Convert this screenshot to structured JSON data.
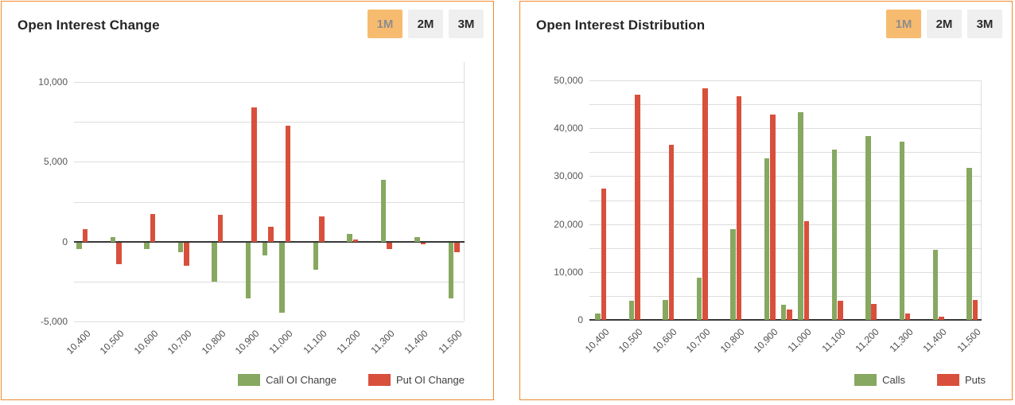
{
  "colors": {
    "call": "#87A860",
    "put": "#D8503C",
    "panel_border": "#EF8A30",
    "button_active_bg": "#F7BB70",
    "button_active_text": "#8D8D8D",
    "button_bg": "#EFEFEF",
    "button_text": "#2B2B2B",
    "gridline": "#DDDDDD",
    "zero_line": "#373737"
  },
  "panels": [
    {
      "title": "Open Interest Change",
      "buttons": [
        {
          "label": "1M",
          "active": true
        },
        {
          "label": "2M",
          "active": false
        },
        {
          "label": "3M",
          "active": false
        }
      ]
    },
    {
      "title": "Open Interest Distribution",
      "buttons": [
        {
          "label": "1M",
          "active": true
        },
        {
          "label": "2M",
          "active": false
        },
        {
          "label": "3M",
          "active": false
        }
      ]
    }
  ],
  "chart_data": [
    {
      "type": "bar",
      "title": "Open Interest Change",
      "x_axis": {
        "type": "linear",
        "categories": [
          10400,
          10500,
          10600,
          10700,
          10800,
          10900,
          10950,
          11000,
          11100,
          11200,
          11300,
          11400,
          11500
        ],
        "tick_labels": [
          {
            "value": 10400,
            "label": "10,400"
          },
          {
            "value": 10500,
            "label": "10,500"
          },
          {
            "value": 10600,
            "label": "10,600"
          },
          {
            "value": 10700,
            "label": "10,700"
          },
          {
            "value": 10800,
            "label": "10,800"
          },
          {
            "value": 10900,
            "label": "10,900"
          },
          {
            "value": 11000,
            "label": "11,000"
          },
          {
            "value": 11100,
            "label": "11,100"
          },
          {
            "value": 11200,
            "label": "11,200"
          },
          {
            "value": 11300,
            "label": "11,300"
          },
          {
            "value": 11400,
            "label": "11,400"
          },
          {
            "value": 11500,
            "label": "11,500"
          }
        ]
      },
      "series": [
        {
          "name": "Call OI Change",
          "color_key": "call",
          "values": [
            -400,
            300,
            -400,
            -600,
            -2450,
            -3500,
            -800,
            -4400,
            -1700,
            500,
            3900,
            300,
            -3500
          ]
        },
        {
          "name": "Put OI Change",
          "color_key": "put",
          "values": [
            800,
            -1350,
            1750,
            -1450,
            1700,
            8400,
            950,
            7250,
            1600,
            150,
            -400,
            -100,
            -600
          ]
        }
      ],
      "y_axis": {
        "lim": [
          -5000,
          11250
        ],
        "minor_step": 2500,
        "tick_labels": [
          {
            "value": 10000,
            "label": "10,000"
          },
          {
            "value": 5000,
            "label": "5,000"
          },
          {
            "value": 0,
            "label": "0"
          },
          {
            "value": -5000,
            "label": "-5,000"
          }
        ]
      },
      "legend": [
        "Call OI Change",
        "Put OI Change"
      ],
      "legend_position": "bottom-right",
      "grid": true
    },
    {
      "type": "bar",
      "title": "Open Interest Distribution",
      "x_axis": {
        "type": "linear",
        "categories": [
          10400,
          10500,
          10600,
          10700,
          10800,
          10900,
          10950,
          11000,
          11100,
          11200,
          11300,
          11400,
          11500
        ],
        "tick_labels": [
          {
            "value": 10400,
            "label": "10,400"
          },
          {
            "value": 10500,
            "label": "10,500"
          },
          {
            "value": 10600,
            "label": "10,600"
          },
          {
            "value": 10700,
            "label": "10,700"
          },
          {
            "value": 10800,
            "label": "10,800"
          },
          {
            "value": 10900,
            "label": "10,900"
          },
          {
            "value": 11000,
            "label": "11,000"
          },
          {
            "value": 11100,
            "label": "11,100"
          },
          {
            "value": 11200,
            "label": "11,200"
          },
          {
            "value": 11300,
            "label": "11,300"
          },
          {
            "value": 11400,
            "label": "11,400"
          },
          {
            "value": 11500,
            "label": "11,500"
          }
        ]
      },
      "series": [
        {
          "name": "Calls",
          "color_key": "call",
          "values": [
            1300,
            4000,
            4200,
            8800,
            19000,
            33800,
            3100,
            43400,
            35500,
            38300,
            37300,
            14600,
            31800
          ]
        },
        {
          "name": "Puts",
          "color_key": "put",
          "values": [
            27500,
            47000,
            36500,
            48400,
            46700,
            42800,
            2100,
            20600,
            4000,
            3300,
            1400,
            700,
            4200
          ]
        }
      ],
      "y_axis": {
        "lim": [
          0,
          50000
        ],
        "minor_step": 5000,
        "tick_labels": [
          {
            "value": 50000,
            "label": "50,000"
          },
          {
            "value": 40000,
            "label": "40,000"
          },
          {
            "value": 30000,
            "label": "30,000"
          },
          {
            "value": 20000,
            "label": "20,000"
          },
          {
            "value": 10000,
            "label": "10,000"
          },
          {
            "value": 0,
            "label": "0"
          }
        ]
      },
      "legend": [
        "Calls",
        "Puts"
      ],
      "legend_position": "bottom-right",
      "grid": true
    }
  ]
}
